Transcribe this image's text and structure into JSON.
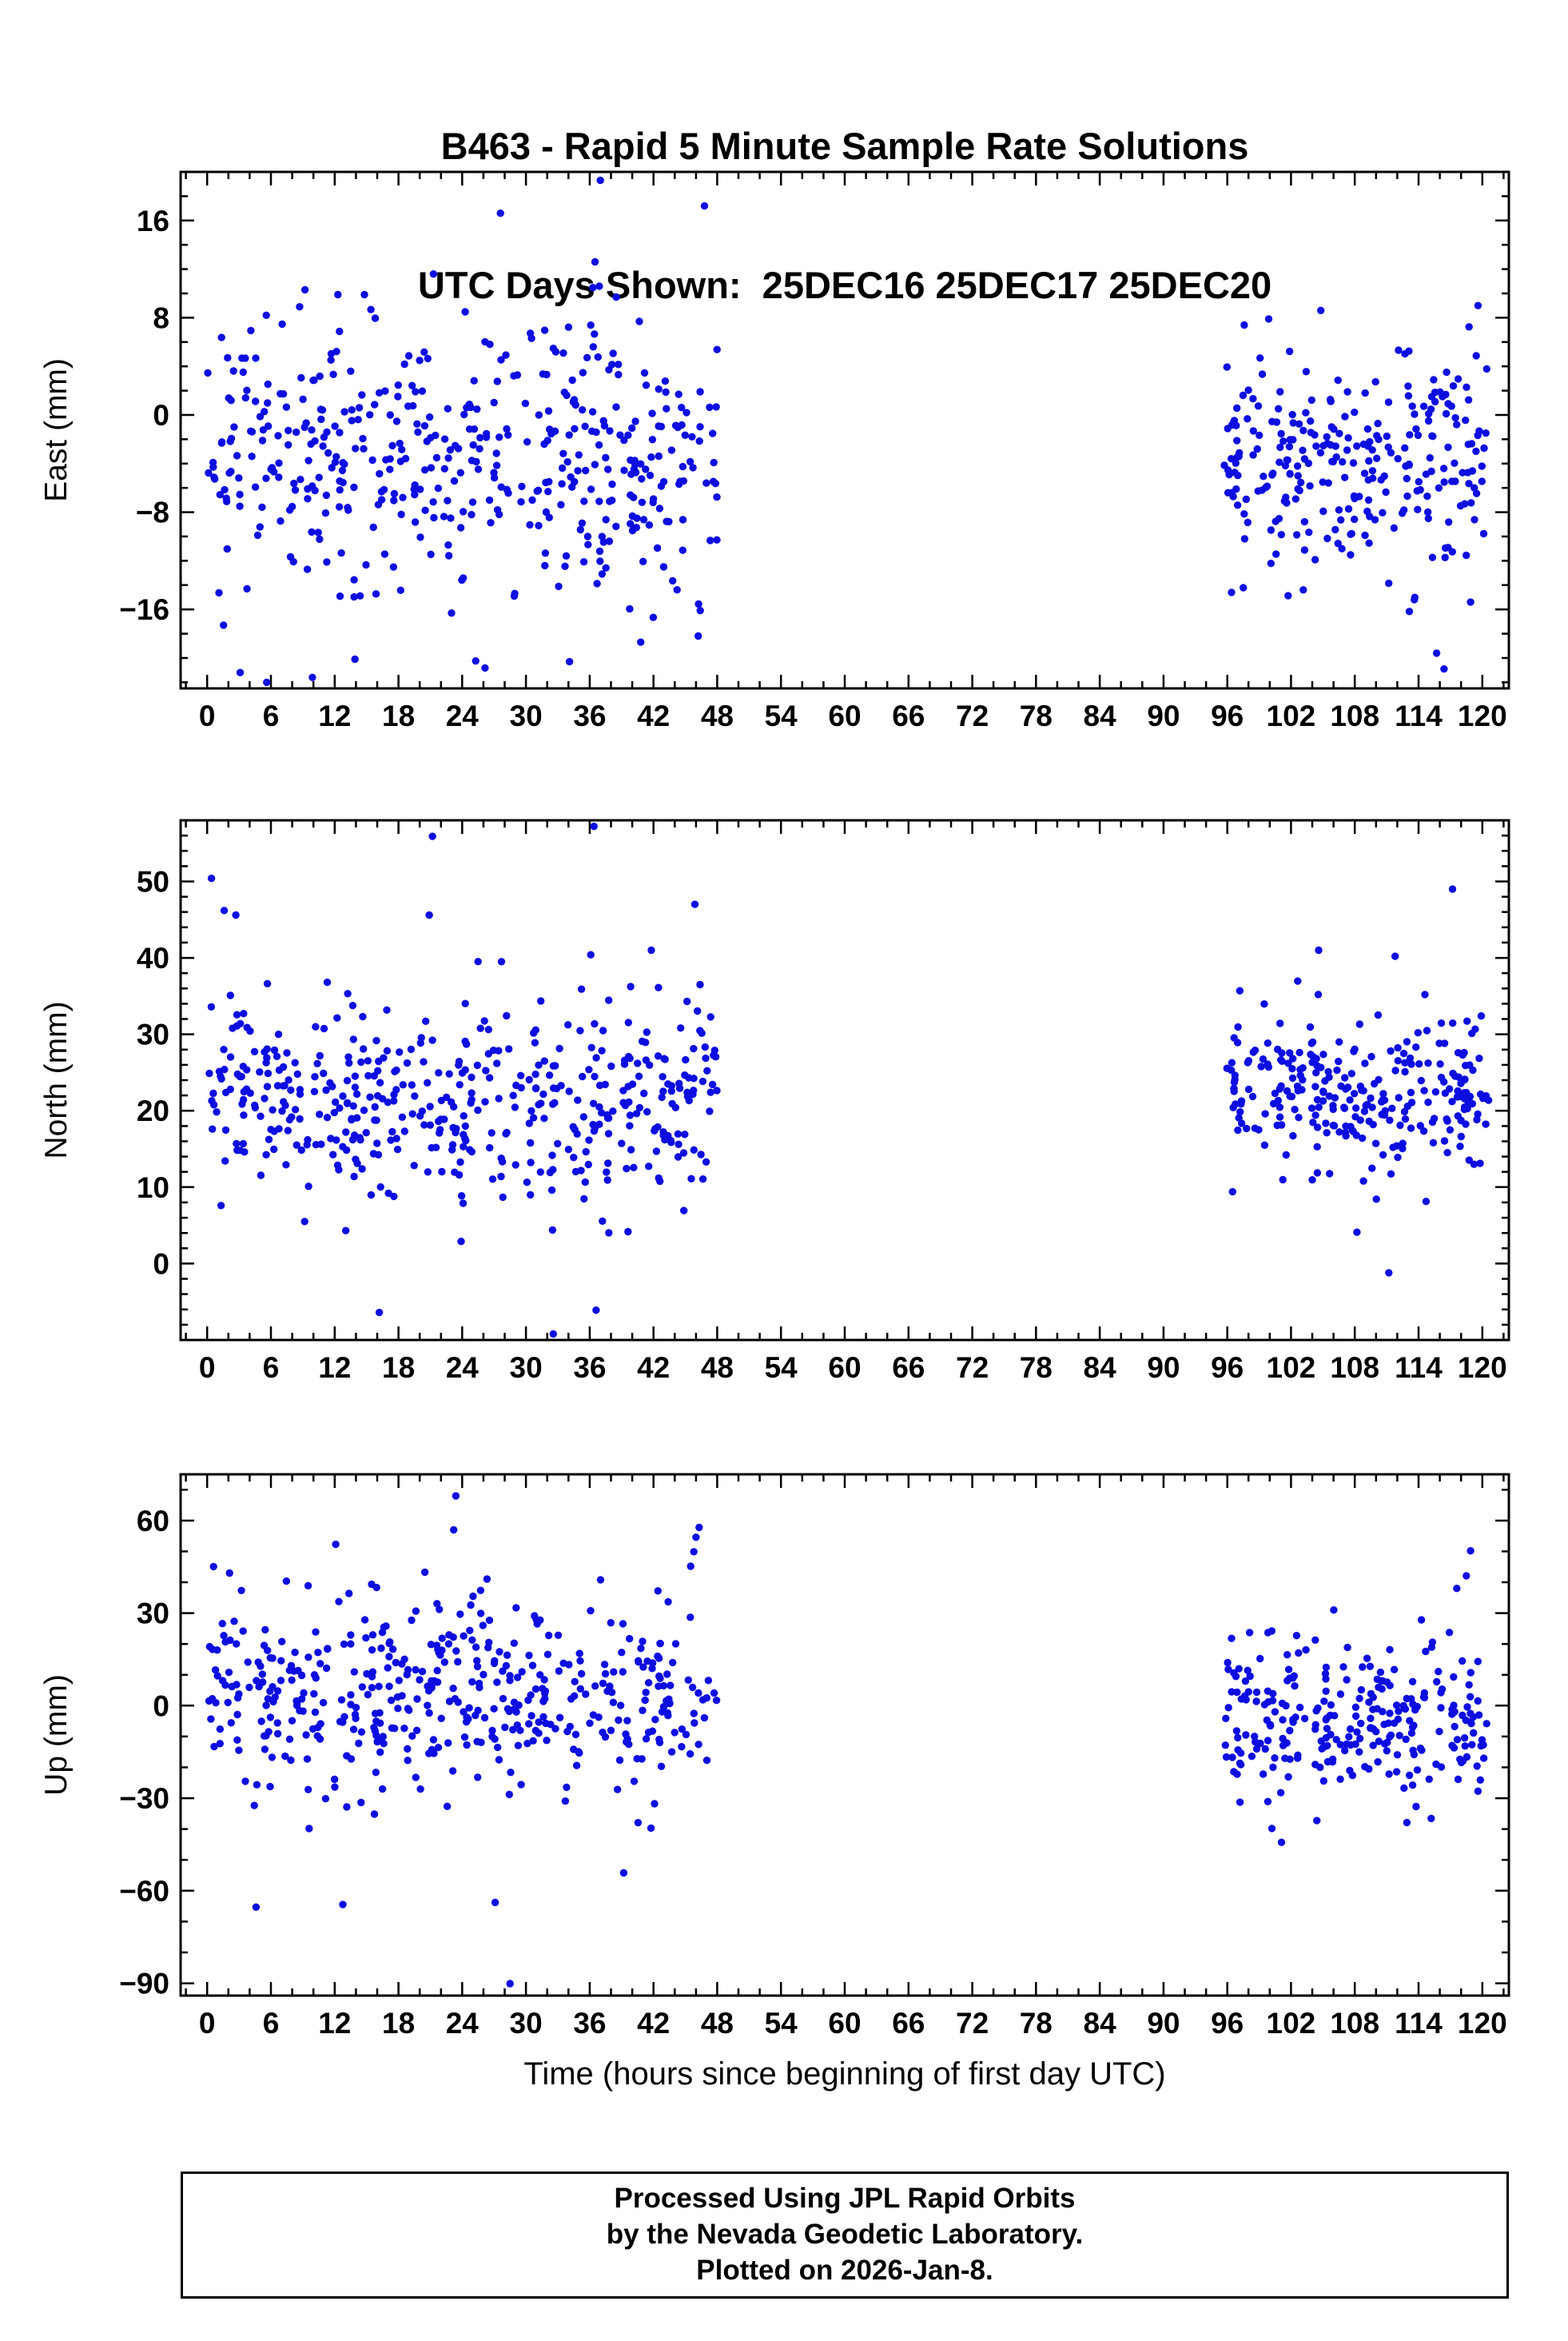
{
  "page": {
    "title_line1": "B463 - Rapid 5 Minute Sample Rate Solutions",
    "title_line2": "UTC Days Shown:  25DEC16 25DEC17 25DEC20",
    "xlabel": "Time (hours since beginning of first day UTC)",
    "footer_lines": [
      "Processed Using JPL Rapid Orbits",
      "by the Nevada Geodetic Laboratory.",
      "Plotted on 2026-Jan-8."
    ],
    "point_color": "#0d0de0",
    "frame_color": "#000000"
  },
  "chart_data": [
    {
      "type": "scatter",
      "name": "east",
      "ylabel": "East (mm)",
      "xlabel": "",
      "xlim": [
        -2.5,
        122.5
      ],
      "ylim": [
        -22.5,
        20
      ],
      "xtick_labels": [
        0,
        6,
        12,
        18,
        24,
        30,
        36,
        42,
        48,
        54,
        60,
        66,
        72,
        78,
        84,
        90,
        96,
        102,
        108,
        114,
        120
      ],
      "x_major_step": 6,
      "x_minor_step": 2,
      "ytick_labels": [
        -16,
        -8,
        0,
        8,
        16
      ],
      "y_minor_step": 2,
      "grid": false,
      "legend": false,
      "seed": 101,
      "clusters": [
        {
          "x_start": 0,
          "x_end": 48,
          "count": 455,
          "mean": -3.5,
          "std": 5.2
        },
        {
          "x_start": 95.7,
          "x_end": 120.6,
          "count": 265,
          "mean": -4.0,
          "std": 4.2
        }
      ],
      "outliers": [
        [
          37.0,
          19.3
        ],
        [
          46.8,
          17.2
        ],
        [
          27.6,
          16.6
        ],
        [
          36.5,
          12.6
        ],
        [
          21.3,
          11.6
        ],
        [
          36.9,
          10.6
        ],
        [
          38.5,
          9.7
        ],
        [
          9.2,
          10.3
        ],
        [
          8.7,
          8.9
        ],
        [
          12.3,
          9.9
        ],
        [
          14.8,
          9.9
        ],
        [
          3.1,
          -21.2
        ],
        [
          5.6,
          -22.0
        ],
        [
          9.9,
          -21.6
        ],
        [
          13.9,
          -20.1
        ],
        [
          34.1,
          -20.3
        ],
        [
          40.8,
          -18.7
        ],
        [
          46.4,
          -16.1
        ],
        [
          23.0,
          -16.3
        ],
        [
          28.9,
          -14.9
        ],
        [
          97.6,
          7.4
        ],
        [
          99.9,
          7.9
        ],
        [
          104.8,
          8.6
        ],
        [
          119.6,
          9.0
        ],
        [
          113.6,
          -15.2
        ],
        [
          115.7,
          -19.6
        ],
        [
          116.4,
          -20.9
        ],
        [
          118.9,
          -15.4
        ],
        [
          96.4,
          -14.6
        ]
      ]
    },
    {
      "type": "scatter",
      "name": "north",
      "ylabel": "North (mm)",
      "xlabel": "",
      "xlim": [
        -2.5,
        122.5
      ],
      "ylim": [
        -10,
        58
      ],
      "xtick_labels": [
        0,
        6,
        12,
        18,
        24,
        30,
        36,
        42,
        48,
        54,
        60,
        66,
        72,
        78,
        84,
        90,
        96,
        102,
        108,
        114,
        120
      ],
      "x_major_step": 6,
      "x_minor_step": 2,
      "ytick_labels": [
        0,
        10,
        20,
        30,
        40,
        50
      ],
      "y_minor_step": 2,
      "grid": false,
      "legend": false,
      "seed": 202,
      "clusters": [
        {
          "x_start": 0,
          "x_end": 48,
          "count": 460,
          "mean": 21.0,
          "std": 6.5
        },
        {
          "x_start": 95.7,
          "x_end": 120.6,
          "count": 265,
          "mean": 22.0,
          "std": 5.0
        }
      ],
      "outliers": [
        [
          0.4,
          50.4
        ],
        [
          1.6,
          46.2
        ],
        [
          2.7,
          45.6
        ],
        [
          21.2,
          55.9
        ],
        [
          20.9,
          45.6
        ],
        [
          36.4,
          57.2
        ],
        [
          45.9,
          47.0
        ],
        [
          36.1,
          40.4
        ],
        [
          41.8,
          41.0
        ],
        [
          27.7,
          39.5
        ],
        [
          16.2,
          -6.4
        ],
        [
          36.6,
          -6.1
        ],
        [
          23.9,
          2.9
        ],
        [
          32.5,
          4.4
        ],
        [
          117.2,
          49.0
        ],
        [
          111.8,
          40.2
        ],
        [
          104.6,
          41.0
        ],
        [
          96.5,
          9.4
        ],
        [
          108.2,
          4.1
        ],
        [
          111.2,
          -1.2
        ],
        [
          114.6,
          35.2
        ],
        [
          119.9,
          32.4
        ]
      ]
    },
    {
      "type": "scatter",
      "name": "up",
      "ylabel": "Up (mm)",
      "xlabel": "Time (hours since beginning of first day UTC)",
      "xlim": [
        -2.5,
        122.5
      ],
      "ylim": [
        -94,
        75
      ],
      "xtick_labels": [
        0,
        6,
        12,
        18,
        24,
        30,
        36,
        42,
        48,
        54,
        60,
        66,
        72,
        78,
        84,
        90,
        96,
        102,
        108,
        114,
        120
      ],
      "x_major_step": 6,
      "x_minor_step": 2,
      "ytick_labels": [
        -90,
        -60,
        -30,
        0,
        30,
        60
      ],
      "y_minor_step": 10,
      "grid": false,
      "legend": false,
      "seed": 303,
      "clusters": [
        {
          "x_start": 0,
          "x_end": 48,
          "count": 455,
          "mean": 2.0,
          "std": 16.0
        },
        {
          "x_start": 95.7,
          "x_end": 120.6,
          "count": 260,
          "mean": -4.0,
          "std": 13.0
        }
      ],
      "outliers": [
        [
          23.4,
          68.0
        ],
        [
          23.2,
          57.0
        ],
        [
          12.1,
          52.3
        ],
        [
          46.3,
          57.8
        ],
        [
          46.0,
          54.6
        ],
        [
          45.8,
          49.9
        ],
        [
          45.5,
          45.2
        ],
        [
          0.6,
          45.1
        ],
        [
          2.1,
          43.0
        ],
        [
          9.5,
          38.9
        ],
        [
          28.5,
          -90.1
        ],
        [
          4.6,
          -65.3
        ],
        [
          27.1,
          -63.8
        ],
        [
          39.2,
          -54.2
        ],
        [
          42.1,
          -31.8
        ],
        [
          118.9,
          50.2
        ],
        [
          118.5,
          42.1
        ],
        [
          117.6,
          38.0
        ],
        [
          101.1,
          -44.3
        ],
        [
          100.2,
          -39.8
        ],
        [
          112.9,
          -37.9
        ],
        [
          96.4,
          21.8
        ],
        [
          98.1,
          23.7
        ]
      ]
    }
  ]
}
